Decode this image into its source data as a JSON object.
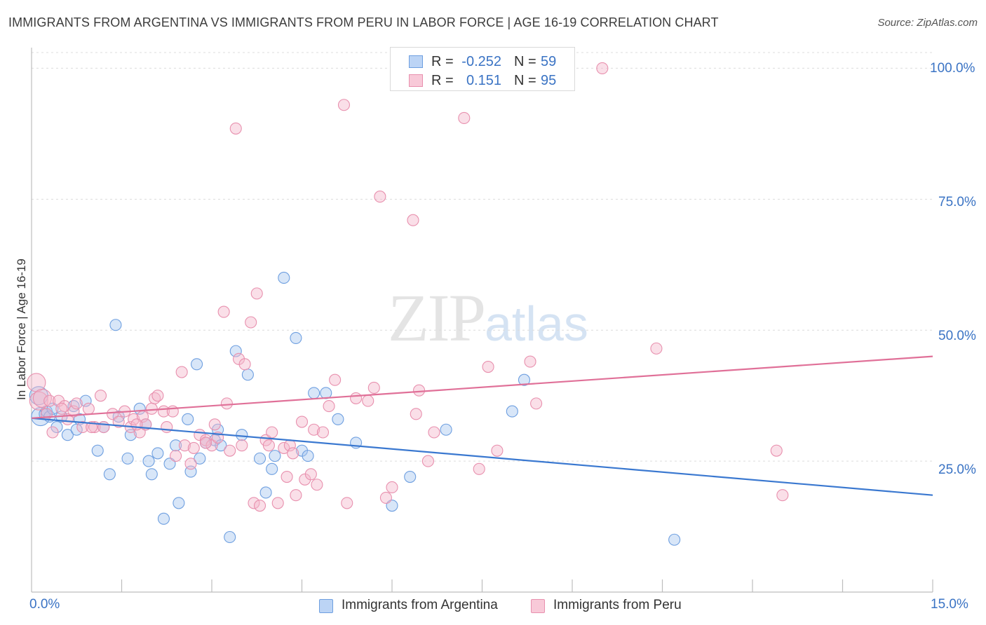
{
  "chart_data": {
    "type": "scatter",
    "title": "IMMIGRANTS FROM ARGENTINA VS IMMIGRANTS FROM PERU IN LABOR FORCE | AGE 16-19 CORRELATION CHART",
    "source": "Source: ZipAtlas.com",
    "xlabel": "",
    "ylabel": "In Labor Force | Age 16-19",
    "xlim": [
      0,
      15
    ],
    "ylim": [
      0,
      103
    ],
    "x_tick_labels": [
      "0.0%",
      "15.0%"
    ],
    "y_tick_labels": [
      "25.0%",
      "50.0%",
      "75.0%",
      "100.0%"
    ],
    "y_ticks": [
      25,
      50,
      75,
      100
    ],
    "grid": "horizontal dashed",
    "legend_position": "bottom-center",
    "watermark": {
      "zip": "ZIP",
      "atlas": "atlas"
    },
    "stats": [
      {
        "r_label": "R =",
        "r_value": "-0.252",
        "n_label": "N =",
        "n_value": "59"
      },
      {
        "r_label": "R =",
        "r_value": "0.151",
        "n_label": "N =",
        "n_value": "95"
      }
    ],
    "series": [
      {
        "name": "Immigrants from Argentina",
        "color": "#a9c8f0",
        "edge_color": "#6e9fe0",
        "line_color": "#3a78d0",
        "trend": {
          "x": [
            0,
            15
          ],
          "y": [
            33.2,
            18.5
          ]
        },
        "points": [
          [
            0.12,
            37.5
          ],
          [
            0.15,
            33.5
          ],
          [
            0.22,
            34.0
          ],
          [
            0.25,
            34.5
          ],
          [
            0.3,
            33.5
          ],
          [
            0.35,
            35.0
          ],
          [
            0.42,
            31.5
          ],
          [
            0.5,
            33.5
          ],
          [
            0.6,
            30.0
          ],
          [
            0.7,
            35.5
          ],
          [
            0.75,
            31.0
          ],
          [
            0.8,
            33.0
          ],
          [
            0.9,
            36.5
          ],
          [
            1.1,
            27.0
          ],
          [
            1.2,
            31.5
          ],
          [
            1.3,
            22.5
          ],
          [
            1.4,
            51.0
          ],
          [
            1.45,
            33.5
          ],
          [
            1.6,
            25.5
          ],
          [
            1.65,
            30.0
          ],
          [
            1.8,
            35.0
          ],
          [
            1.9,
            32.0
          ],
          [
            1.95,
            25.0
          ],
          [
            2.0,
            22.5
          ],
          [
            2.1,
            26.5
          ],
          [
            2.2,
            14.0
          ],
          [
            2.3,
            24.5
          ],
          [
            2.4,
            28.0
          ],
          [
            2.45,
            17.0
          ],
          [
            2.6,
            33.0
          ],
          [
            2.65,
            23.0
          ],
          [
            2.75,
            43.5
          ],
          [
            2.8,
            25.5
          ],
          [
            2.9,
            28.5
          ],
          [
            3.05,
            29.0
          ],
          [
            3.1,
            31.0
          ],
          [
            3.15,
            28.0
          ],
          [
            3.3,
            10.5
          ],
          [
            3.4,
            46.0
          ],
          [
            3.5,
            30.0
          ],
          [
            3.6,
            41.5
          ],
          [
            3.8,
            25.5
          ],
          [
            3.9,
            19.0
          ],
          [
            4.0,
            23.5
          ],
          [
            4.05,
            26.0
          ],
          [
            4.2,
            60.0
          ],
          [
            4.4,
            48.5
          ],
          [
            4.5,
            27.0
          ],
          [
            4.6,
            26.0
          ],
          [
            4.7,
            38.0
          ],
          [
            4.9,
            38.0
          ],
          [
            5.1,
            33.0
          ],
          [
            5.4,
            28.5
          ],
          [
            6.0,
            16.5
          ],
          [
            6.3,
            22.0
          ],
          [
            6.9,
            31.0
          ],
          [
            8.0,
            34.5
          ],
          [
            8.2,
            40.5
          ],
          [
            10.7,
            10.0
          ]
        ]
      },
      {
        "name": "Immigrants from Peru",
        "color": "#f5b8cc",
        "edge_color": "#e890ae",
        "line_color": "#e07098",
        "trend": {
          "x": [
            0,
            15
          ],
          "y": [
            33.2,
            45.0
          ]
        },
        "points": [
          [
            0.08,
            40.0
          ],
          [
            0.12,
            36.5
          ],
          [
            0.18,
            37.0
          ],
          [
            0.25,
            34.0
          ],
          [
            0.3,
            36.5
          ],
          [
            0.35,
            30.5
          ],
          [
            0.45,
            36.5
          ],
          [
            0.55,
            35.5
          ],
          [
            0.6,
            33.0
          ],
          [
            0.7,
            34.5
          ],
          [
            0.75,
            36.0
          ],
          [
            0.85,
            31.5
          ],
          [
            0.95,
            35.0
          ],
          [
            1.05,
            31.5
          ],
          [
            1.15,
            37.5
          ],
          [
            1.2,
            31.5
          ],
          [
            1.35,
            34.0
          ],
          [
            1.45,
            32.5
          ],
          [
            1.55,
            34.5
          ],
          [
            1.65,
            31.5
          ],
          [
            1.7,
            33.0
          ],
          [
            1.8,
            30.5
          ],
          [
            1.85,
            33.5
          ],
          [
            1.9,
            32.0
          ],
          [
            2.0,
            35.0
          ],
          [
            2.05,
            37.0
          ],
          [
            2.1,
            37.5
          ],
          [
            2.2,
            34.5
          ],
          [
            2.25,
            31.5
          ],
          [
            2.35,
            34.5
          ],
          [
            2.4,
            26.0
          ],
          [
            2.5,
            42.0
          ],
          [
            2.55,
            28.0
          ],
          [
            2.65,
            24.5
          ],
          [
            2.7,
            27.5
          ],
          [
            2.8,
            30.0
          ],
          [
            2.9,
            29.0
          ],
          [
            3.0,
            28.0
          ],
          [
            3.05,
            32.0
          ],
          [
            3.1,
            29.5
          ],
          [
            3.2,
            53.5
          ],
          [
            3.25,
            36.0
          ],
          [
            3.3,
            27.0
          ],
          [
            3.4,
            88.5
          ],
          [
            3.45,
            44.5
          ],
          [
            3.5,
            28.0
          ],
          [
            3.55,
            43.5
          ],
          [
            3.65,
            51.5
          ],
          [
            3.7,
            17.0
          ],
          [
            3.75,
            57.0
          ],
          [
            3.8,
            16.5
          ],
          [
            3.9,
            29.0
          ],
          [
            4.0,
            30.5
          ],
          [
            4.1,
            17.0
          ],
          [
            4.2,
            27.5
          ],
          [
            4.25,
            22.0
          ],
          [
            4.3,
            28.0
          ],
          [
            4.4,
            18.5
          ],
          [
            4.5,
            32.5
          ],
          [
            4.55,
            21.5
          ],
          [
            4.65,
            22.5
          ],
          [
            4.7,
            31.0
          ],
          [
            4.75,
            20.5
          ],
          [
            4.85,
            30.5
          ],
          [
            4.95,
            35.5
          ],
          [
            5.05,
            40.5
          ],
          [
            5.2,
            93.0
          ],
          [
            5.25,
            17.0
          ],
          [
            5.4,
            37.0
          ],
          [
            5.6,
            36.5
          ],
          [
            5.7,
            39.0
          ],
          [
            5.8,
            75.5
          ],
          [
            5.9,
            18.0
          ],
          [
            6.0,
            20.0
          ],
          [
            6.35,
            71.0
          ],
          [
            6.4,
            34.0
          ],
          [
            6.45,
            38.5
          ],
          [
            6.6,
            25.0
          ],
          [
            6.7,
            30.5
          ],
          [
            7.2,
            90.5
          ],
          [
            7.45,
            23.5
          ],
          [
            7.6,
            43.0
          ],
          [
            7.75,
            27.0
          ],
          [
            8.3,
            44.0
          ],
          [
            8.4,
            36.0
          ],
          [
            9.5,
            100.0
          ],
          [
            10.4,
            46.5
          ],
          [
            12.4,
            27.0
          ],
          [
            12.5,
            18.5
          ],
          [
            1.0,
            31.5
          ],
          [
            2.9,
            28.5
          ],
          [
            4.35,
            26.5
          ],
          [
            3.95,
            28.0
          ],
          [
            1.75,
            32.0
          ],
          [
            0.5,
            35.0
          ]
        ]
      }
    ]
  }
}
